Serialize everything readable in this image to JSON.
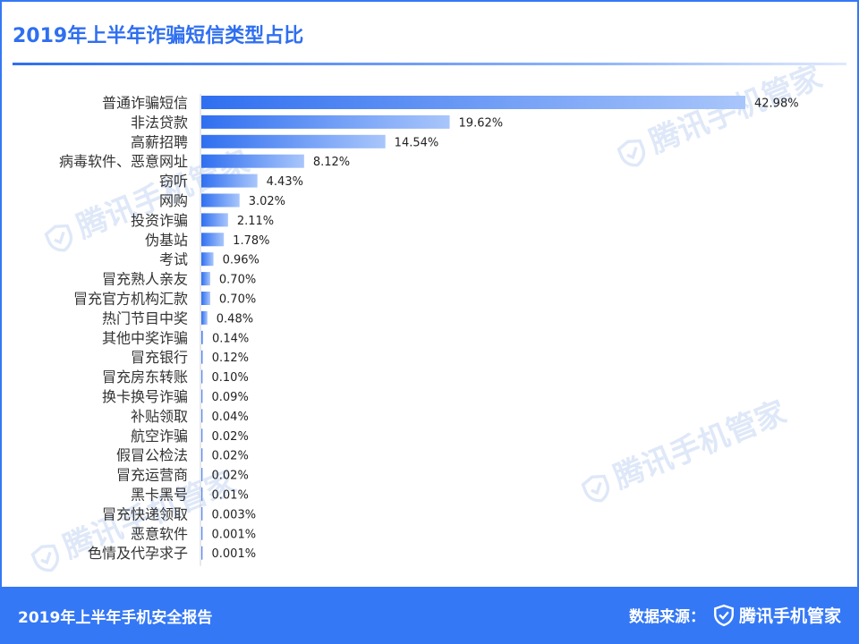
{
  "header": {
    "title": "2019年上半年诈骗短信类型占比"
  },
  "watermark": {
    "text": "腾讯手机管家"
  },
  "footer": {
    "report_title": "2019年上半年手机安全报告",
    "source_label": "数据来源：",
    "brand": "腾讯手机管家"
  },
  "colors": {
    "accent": "#3478f6",
    "bar_start": "#2f6ff0",
    "bar_end": "#a9c6fb"
  },
  "chart_data": {
    "type": "bar",
    "orientation": "horizontal",
    "title": "2019年上半年诈骗短信类型占比",
    "xlabel": "",
    "ylabel": "",
    "grid": false,
    "legend": "none",
    "xlim": [
      0,
      42.98
    ],
    "categories": [
      "普通诈骗短信",
      "非法贷款",
      "高薪招聘",
      "病毒软件、恶意网址",
      "窃听",
      "网购",
      "投资诈骗",
      "伪基站",
      "考试",
      "冒充熟人亲友",
      "冒充官方机构汇款",
      "热门节目中奖",
      "其他中奖诈骗",
      "冒充银行",
      "冒充房东转账",
      "换卡换号诈骗",
      "补贴领取",
      "航空诈骗",
      "假冒公检法",
      "冒充运营商",
      "黑卡黑号",
      "冒充快递领取",
      "恶意软件",
      "色情及代孕求子"
    ],
    "values": [
      42.98,
      19.62,
      14.54,
      8.12,
      4.43,
      3.02,
      2.11,
      1.78,
      0.96,
      0.7,
      0.7,
      0.48,
      0.14,
      0.12,
      0.1,
      0.09,
      0.04,
      0.02,
      0.02,
      0.02,
      0.01,
      0.003,
      0.001,
      0.001
    ],
    "labels": [
      "42.98%",
      "19.62%",
      "14.54%",
      "8.12%",
      "4.43%",
      "3.02%",
      "2.11%",
      "1.78%",
      "0.96%",
      "0.70%",
      "0.70%",
      "0.48%",
      "0.14%",
      "0.12%",
      "0.10%",
      "0.09%",
      "0.04%",
      "0.02%",
      "0.02%",
      "0.02%",
      "0.01%",
      "0.003%",
      "0.001%",
      "0.001%"
    ]
  }
}
